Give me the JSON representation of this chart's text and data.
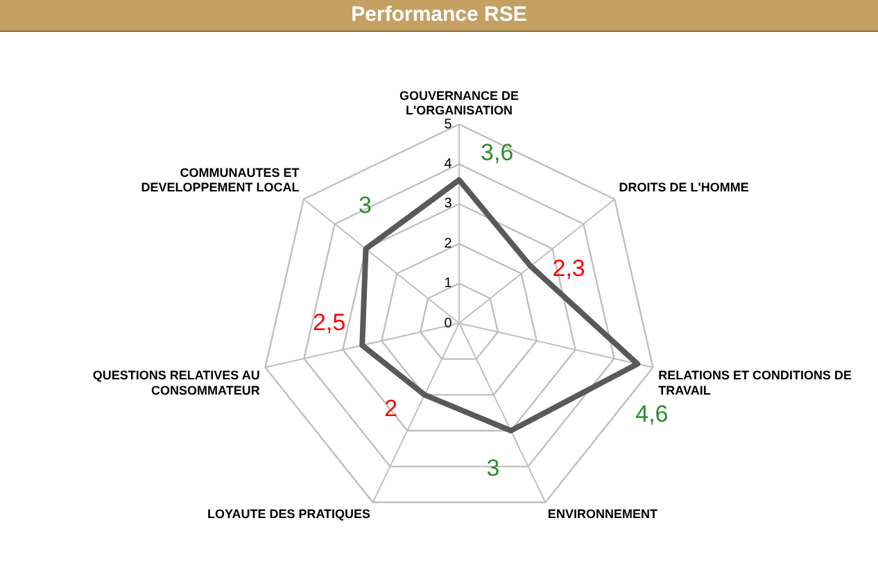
{
  "chart_data": {
    "type": "radar",
    "title": "Performance RSE",
    "categories": [
      "GOUVERNANCE DE L'ORGANISATION",
      "DROITS DE L'HOMME",
      "RELATIONS ET CONDITIONS DE TRAVAIL",
      "ENVIRONNEMENT",
      "LOYAUTE DES PRATIQUES",
      "QUESTIONS RELATIVES AU CONSOMMATEUR",
      "COMMUNAUTES ET DEVELOPPEMENT LOCAL"
    ],
    "series": [
      {
        "color": "#595959",
        "values": [
          3.6,
          2.3,
          4.6,
          3,
          2,
          2.5,
          3
        ],
        "value_labels": [
          "3,6",
          "2,3",
          "4,6",
          "3",
          "2",
          "2,5",
          "3"
        ],
        "colors": [
          "#2e8b2e",
          "#ff0000",
          "#2e8b2e",
          "#2e8b2e",
          "#ff0000",
          "#ff0000",
          "#2e8b2e"
        ]
      }
    ],
    "ylim": [
      0,
      5
    ],
    "yticks": [
      0,
      1,
      2,
      3,
      4,
      5
    ],
    "grid": true,
    "legend": false
  }
}
